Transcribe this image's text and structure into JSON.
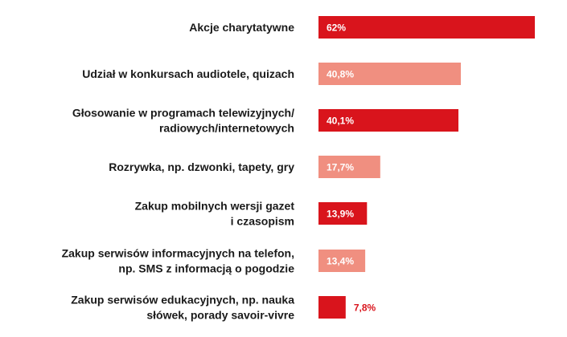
{
  "chart_data": {
    "type": "bar",
    "orientation": "horizontal",
    "categories": [
      [
        "Akcje charytatywne"
      ],
      [
        "Udział w konkursach audiotele, quizach"
      ],
      [
        "Głosowanie w programach telewizyjnych/",
        "radiowych/internetowych"
      ],
      [
        "Rozrywka, np. dzwonki, tapety, gry"
      ],
      [
        "Zakup mobilnych wersji gazet",
        "i czasopism"
      ],
      [
        "Zakup serwisów informacyjnych na telefon,",
        "np. SMS z informacją o pogodzie"
      ],
      [
        "Zakup serwisów edukacyjnych, np. nauka",
        "słówek, porady savoir-vivre"
      ]
    ],
    "values": [
      62,
      40.8,
      40.1,
      17.7,
      13.9,
      13.4,
      7.8
    ],
    "value_labels": [
      "62%",
      "40,8%",
      "40,1%",
      "17,7%",
      "13,9%",
      "13,4%",
      "7,8%"
    ],
    "xlim": [
      0,
      62
    ],
    "grid": false,
    "colors": {
      "dark": "#d9141c",
      "light": "#f08f80",
      "label_inside": "#ffffff",
      "label_outside": "#d9141c"
    },
    "bar_color_pattern": [
      "dark",
      "light",
      "dark",
      "light",
      "dark",
      "light",
      "dark"
    ]
  }
}
